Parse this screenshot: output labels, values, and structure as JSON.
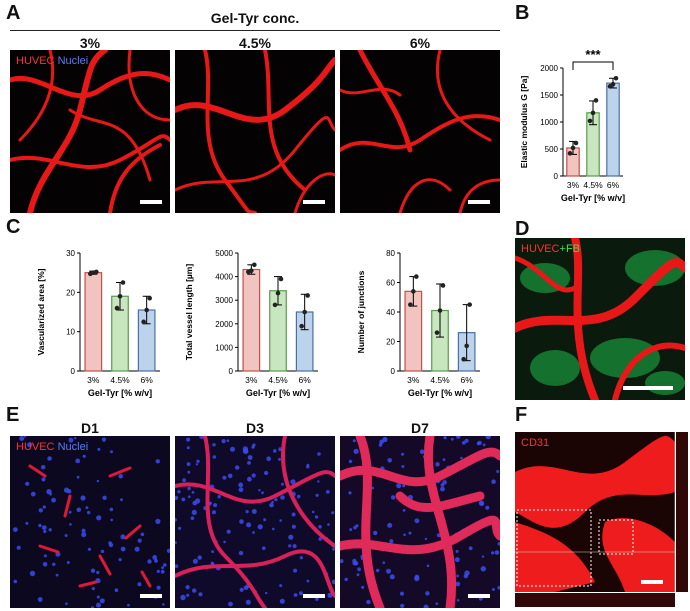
{
  "panels": {
    "A": {
      "letter": "A",
      "title": "Gel-Tyr conc.",
      "columns": [
        "3%",
        "4.5%",
        "6%"
      ],
      "label_red": "HUVEC",
      "label_blue": "Nuclei"
    },
    "B": {
      "letter": "B"
    },
    "C": {
      "letter": "C"
    },
    "D": {
      "letter": "D",
      "label_red": "HUVEC",
      "label_green": "FB"
    },
    "E": {
      "letter": "E",
      "columns": [
        "D1",
        "D3",
        "D7"
      ],
      "label_red": "HUVEC",
      "label_blue": "Nuclei"
    },
    "F": {
      "letter": "F",
      "label_red": "CD31"
    }
  },
  "colors": {
    "bar_3": "#f2c4c0",
    "bar_45": "#c8e6c0",
    "bar_6": "#bcd3ec",
    "edge_3": "#c0504d",
    "edge_45": "#5a9a4a",
    "edge_6": "#4a6fa5",
    "red": "#ff2020",
    "blue": "#4a5cff",
    "green": "#30d050"
  },
  "chart_data": [
    {
      "id": "B",
      "type": "bar",
      "categories": [
        "3%",
        "4.5%",
        "6%"
      ],
      "values": [
        520,
        1170,
        1720
      ],
      "errors": [
        120,
        220,
        90
      ],
      "points": [
        [
          420,
          520,
          610
        ],
        [
          1020,
          1170,
          1400
        ],
        [
          1660,
          1700,
          1810
        ]
      ],
      "ylabel": "Elastic modulus G [Pa]",
      "xlabel": "Gel-Tyr [% w/v]",
      "ylim": [
        0,
        2000
      ],
      "yticks": [
        "0",
        "500",
        "1000",
        "1500",
        "2000"
      ],
      "significance": "***"
    },
    {
      "id": "C1",
      "type": "bar",
      "categories": [
        "3%",
        "4.5%",
        "6%"
      ],
      "values": [
        25,
        19,
        15.5
      ],
      "errors": [
        0.4,
        3.5,
        3.5
      ],
      "points": [
        [
          24.7,
          25,
          25.2
        ],
        [
          16,
          19,
          22.5
        ],
        [
          12.5,
          15.5,
          18.5
        ]
      ],
      "ylabel": "Vascularized area [%]",
      "xlabel": "Gel-Tyr [% w/v]",
      "ylim": [
        0,
        30
      ],
      "yticks": [
        "0",
        "10",
        "20",
        "30"
      ]
    },
    {
      "id": "C2",
      "type": "bar",
      "categories": [
        "3%",
        "4.5%",
        "6%"
      ],
      "values": [
        4300,
        3400,
        2500
      ],
      "errors": [
        200,
        600,
        750
      ],
      "points": [
        [
          4200,
          4250,
          4500
        ],
        [
          2800,
          3300,
          3900
        ],
        [
          1900,
          2500,
          3200
        ]
      ],
      "ylabel": "Total vessel length [µm]",
      "xlabel": "Gel-Tyr [% w/v]",
      "ylim": [
        0,
        5000
      ],
      "yticks": [
        "0",
        "1000",
        "2000",
        "3000",
        "4000",
        "5000"
      ]
    },
    {
      "id": "C3",
      "type": "bar",
      "categories": [
        "3%",
        "4.5%",
        "6%"
      ],
      "values": [
        54,
        41,
        26
      ],
      "errors": [
        10,
        18,
        19
      ],
      "points": [
        [
          45,
          54,
          64
        ],
        [
          26,
          41,
          58
        ],
        [
          8,
          17,
          45
        ]
      ],
      "ylabel": "Number of junctions",
      "xlabel": "Gel-Tyr [% w/v]",
      "ylim": [
        0,
        80
      ],
      "yticks": [
        "0",
        "20",
        "40",
        "60",
        "80"
      ]
    }
  ]
}
